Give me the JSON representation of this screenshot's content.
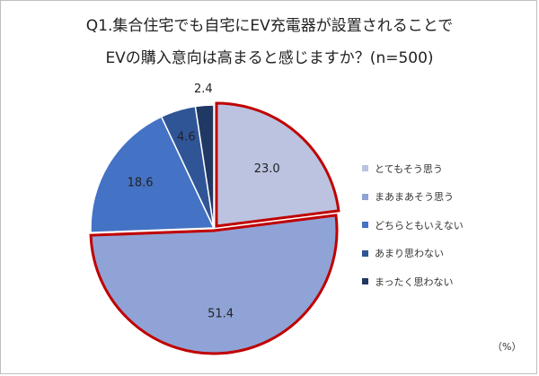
{
  "chart_data": {
    "type": "pie",
    "title_line1": "Q1.集合住宅でも自宅にEV充電器が設置されることで",
    "title_line2": "EVの購入意向は高まると感じますか？(n=500)",
    "unit": "（%）",
    "categories": [
      "とてもそう思う",
      "まあまあそう思う",
      "どちらともいえない",
      "あまり思わない",
      "まったく思わない"
    ],
    "values": [
      23.0,
      51.4,
      18.6,
      4.6,
      2.4
    ],
    "value_labels": [
      "23.0",
      "51.4",
      "18.6",
      "4.6",
      "2.4"
    ],
    "colors": [
      "#bcc3e0",
      "#8fa3d6",
      "#4472c4",
      "#2f5597",
      "#203864"
    ],
    "highlight_color": "#c00000",
    "legend_position": "right"
  }
}
